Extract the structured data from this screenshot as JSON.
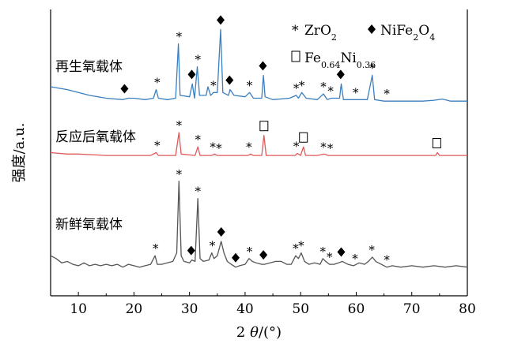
{
  "chart_data": {
    "type": "line",
    "xlabel_prefix": "2",
    "xlabel_theta": "θ",
    "xlabel_unit": "/(°)",
    "ylabel": "强度/a.u.",
    "xlim": [
      5,
      80
    ],
    "ylim": [
      0,
      100
    ],
    "xticks": [
      10,
      20,
      30,
      40,
      50,
      60,
      70,
      80
    ],
    "grid": false,
    "legend": {
      "placement": "top-right",
      "entries": [
        {
          "symbol": "*",
          "label": "ZrO",
          "sub": "2",
          "tail": ""
        },
        {
          "symbol": "◆",
          "label": "NiFe",
          "sub": "2",
          "tail": "O",
          "sub2": "4"
        },
        {
          "symbol": "□",
          "label": "Fe",
          "sub": "0.64",
          "tail": "Ni",
          "sub2": "0.36"
        }
      ]
    },
    "series": [
      {
        "name": "再生氧载体",
        "color": "#3b7fc0",
        "baseline": 67,
        "points": [
          [
            5,
            73
          ],
          [
            8,
            72
          ],
          [
            10,
            71
          ],
          [
            12,
            70
          ],
          [
            15,
            69
          ],
          [
            18,
            68.5
          ],
          [
            19,
            69
          ],
          [
            20,
            69
          ],
          [
            22,
            68.5
          ],
          [
            23.5,
            69
          ],
          [
            24,
            72
          ],
          [
            24.4,
            69
          ],
          [
            26,
            68.5
          ],
          [
            27.5,
            69
          ],
          [
            28,
            88
          ],
          [
            28.3,
            70
          ],
          [
            30,
            69.5
          ],
          [
            30.5,
            74
          ],
          [
            30.9,
            69
          ],
          [
            31.4,
            80
          ],
          [
            31.8,
            70
          ],
          [
            33,
            70
          ],
          [
            33.3,
            73
          ],
          [
            33.8,
            70
          ],
          [
            34.3,
            71
          ],
          [
            35,
            71
          ],
          [
            35.6,
            93
          ],
          [
            36,
            71
          ],
          [
            37,
            70
          ],
          [
            37.3,
            72
          ],
          [
            38,
            70
          ],
          [
            40,
            69.5
          ],
          [
            40.8,
            71
          ],
          [
            41.5,
            69
          ],
          [
            43,
            69
          ],
          [
            43.3,
            77
          ],
          [
            43.6,
            69.5
          ],
          [
            45,
            68.5
          ],
          [
            48,
            69
          ],
          [
            49.2,
            70
          ],
          [
            49.6,
            69
          ],
          [
            50.2,
            71
          ],
          [
            51,
            69
          ],
          [
            53,
            68.5
          ],
          [
            54.1,
            70.5
          ],
          [
            54.8,
            68.5
          ],
          [
            55.5,
            69
          ],
          [
            57,
            69
          ],
          [
            57.3,
            74
          ],
          [
            57.7,
            68.5
          ],
          [
            60,
            68.5
          ],
          [
            62,
            68.5
          ],
          [
            62.9,
            77
          ],
          [
            63.3,
            68.5
          ],
          [
            65,
            68
          ],
          [
            68,
            68
          ],
          [
            70,
            68
          ],
          [
            72,
            68
          ],
          [
            74,
            68.3
          ],
          [
            75.5,
            68.7
          ],
          [
            77,
            68
          ],
          [
            80,
            68
          ]
        ]
      },
      {
        "name": "反应后氧载体",
        "color": "#e05a5a",
        "baseline": 49,
        "points": [
          [
            5,
            50
          ],
          [
            8,
            49.5
          ],
          [
            10,
            49.5
          ],
          [
            15,
            49
          ],
          [
            20,
            49
          ],
          [
            23,
            49
          ],
          [
            24,
            50
          ],
          [
            24.4,
            49
          ],
          [
            27.5,
            49
          ],
          [
            28.1,
            57
          ],
          [
            28.5,
            49.5
          ],
          [
            31,
            49
          ],
          [
            31.5,
            52
          ],
          [
            31.9,
            49
          ],
          [
            34,
            49
          ],
          [
            34.5,
            49.5
          ],
          [
            35,
            49
          ],
          [
            40.5,
            49
          ],
          [
            41,
            49.5
          ],
          [
            41.5,
            49
          ],
          [
            43,
            49
          ],
          [
            43.4,
            56
          ],
          [
            43.8,
            49
          ],
          [
            49,
            49
          ],
          [
            49.4,
            49.7
          ],
          [
            50,
            49
          ],
          [
            50.5,
            52
          ],
          [
            50.9,
            49
          ],
          [
            53,
            49
          ],
          [
            54.2,
            49.5
          ],
          [
            55,
            49
          ],
          [
            60,
            49
          ],
          [
            65,
            49
          ],
          [
            70,
            49
          ],
          [
            74.3,
            49
          ],
          [
            74.6,
            50
          ],
          [
            75,
            49
          ],
          [
            80,
            49
          ]
        ]
      },
      {
        "name": "新鲜氧载体",
        "color": "#555555",
        "baseline": 10,
        "points": [
          [
            5,
            14
          ],
          [
            6,
            13
          ],
          [
            7,
            11.5
          ],
          [
            8,
            12
          ],
          [
            9,
            11
          ],
          [
            10,
            10.5
          ],
          [
            11,
            11.5
          ],
          [
            12,
            10.5
          ],
          [
            13,
            11
          ],
          [
            14,
            10.5
          ],
          [
            15,
            11
          ],
          [
            16,
            10.5
          ],
          [
            17,
            11
          ],
          [
            18,
            10
          ],
          [
            19,
            11
          ],
          [
            20,
            10.5
          ],
          [
            21,
            10
          ],
          [
            22,
            10.5
          ],
          [
            23,
            11
          ],
          [
            23.8,
            14
          ],
          [
            24.2,
            11
          ],
          [
            25,
            11
          ],
          [
            26,
            11.5
          ],
          [
            27,
            12
          ],
          [
            27.7,
            15
          ],
          [
            28.1,
            40
          ],
          [
            28.5,
            14
          ],
          [
            29,
            12
          ],
          [
            30,
            11.5
          ],
          [
            30.4,
            12.5
          ],
          [
            31,
            12
          ],
          [
            31.5,
            34
          ],
          [
            31.9,
            13
          ],
          [
            32.5,
            12
          ],
          [
            33.5,
            12.5
          ],
          [
            34,
            15
          ],
          [
            34.4,
            13
          ],
          [
            35,
            14
          ],
          [
            35.7,
            19
          ],
          [
            36.2,
            15
          ],
          [
            36.8,
            12
          ],
          [
            37.5,
            11
          ],
          [
            38.3,
            10
          ],
          [
            39,
            10.5
          ],
          [
            40,
            11
          ],
          [
            40.7,
            13
          ],
          [
            41.3,
            12
          ],
          [
            42,
            11.5
          ],
          [
            43,
            11
          ],
          [
            43.5,
            11
          ],
          [
            44.5,
            11.5
          ],
          [
            45.5,
            12
          ],
          [
            46.5,
            12
          ],
          [
            47.5,
            11
          ],
          [
            48.3,
            11
          ],
          [
            49.1,
            14
          ],
          [
            49.6,
            13
          ],
          [
            50.1,
            15
          ],
          [
            50.7,
            12
          ],
          [
            51.5,
            11
          ],
          [
            52.5,
            11.5
          ],
          [
            53.5,
            11
          ],
          [
            54,
            13
          ],
          [
            54.5,
            12
          ],
          [
            55.2,
            11
          ],
          [
            56,
            11
          ],
          [
            56.8,
            11.5
          ],
          [
            57.5,
            12
          ],
          [
            58.5,
            11
          ],
          [
            59.5,
            10.5
          ],
          [
            60.5,
            11.5
          ],
          [
            61.5,
            11
          ],
          [
            62.2,
            12
          ],
          [
            62.9,
            13.5
          ],
          [
            63.5,
            12
          ],
          [
            64.5,
            11
          ],
          [
            65.5,
            10
          ],
          [
            66.5,
            10.5
          ],
          [
            68,
            10
          ],
          [
            70,
            10.5
          ],
          [
            72,
            10
          ],
          [
            74,
            10.5
          ],
          [
            76,
            10
          ],
          [
            78,
            10.5
          ],
          [
            80,
            10
          ]
        ]
      }
    ],
    "markers": [
      {
        "series": 0,
        "x": 18.3,
        "symbol": "◆"
      },
      {
        "series": 0,
        "x": 24.2,
        "symbol": "*"
      },
      {
        "series": 0,
        "x": 28.1,
        "symbol": "*"
      },
      {
        "series": 0,
        "x": 30.4,
        "symbol": "◆"
      },
      {
        "series": 0,
        "x": 31.5,
        "symbol": "*"
      },
      {
        "series": 0,
        "x": 34.3,
        "symbol": "*"
      },
      {
        "series": 0,
        "x": 35.6,
        "symbol": "◆"
      },
      {
        "series": 0,
        "x": 37.2,
        "symbol": "◆"
      },
      {
        "series": 0,
        "x": 40.8,
        "symbol": "*"
      },
      {
        "series": 0,
        "x": 43.2,
        "symbol": "◆"
      },
      {
        "series": 0,
        "x": 49.2,
        "symbol": "*"
      },
      {
        "series": 0,
        "x": 50.2,
        "symbol": "*"
      },
      {
        "series": 0,
        "x": 54.1,
        "symbol": "*"
      },
      {
        "series": 0,
        "x": 55.4,
        "symbol": "*"
      },
      {
        "series": 0,
        "x": 57.2,
        "symbol": "◆"
      },
      {
        "series": 0,
        "x": 59.9,
        "symbol": "*"
      },
      {
        "series": 0,
        "x": 62.9,
        "symbol": "*"
      },
      {
        "series": 0,
        "x": 65.5,
        "symbol": "*"
      },
      {
        "series": 1,
        "x": 24.2,
        "symbol": "*"
      },
      {
        "series": 1,
        "x": 28.1,
        "symbol": "*"
      },
      {
        "series": 1,
        "x": 31.5,
        "symbol": "*"
      },
      {
        "series": 1,
        "x": 34.2,
        "symbol": "*"
      },
      {
        "series": 1,
        "x": 35.3,
        "symbol": "*"
      },
      {
        "series": 1,
        "x": 40.7,
        "symbol": "*"
      },
      {
        "series": 1,
        "x": 43.4,
        "symbol": "□"
      },
      {
        "series": 1,
        "x": 49.2,
        "symbol": "*"
      },
      {
        "series": 1,
        "x": 50.5,
        "symbol": "□"
      },
      {
        "series": 1,
        "x": 54.1,
        "symbol": "*"
      },
      {
        "series": 1,
        "x": 55.3,
        "symbol": "*"
      },
      {
        "series": 1,
        "x": 74.5,
        "symbol": "□"
      },
      {
        "series": 2,
        "x": 23.9,
        "symbol": "*"
      },
      {
        "series": 2,
        "x": 28.1,
        "symbol": "*"
      },
      {
        "series": 2,
        "x": 30.3,
        "symbol": "◆"
      },
      {
        "series": 2,
        "x": 31.5,
        "symbol": "*"
      },
      {
        "series": 2,
        "x": 34.1,
        "symbol": "*"
      },
      {
        "series": 2,
        "x": 35.7,
        "symbol": "◆"
      },
      {
        "series": 2,
        "x": 38.3,
        "symbol": "◆"
      },
      {
        "series": 2,
        "x": 40.8,
        "symbol": "*"
      },
      {
        "series": 2,
        "x": 43.3,
        "symbol": "◆"
      },
      {
        "series": 2,
        "x": 49.1,
        "symbol": "*"
      },
      {
        "series": 2,
        "x": 50.1,
        "symbol": "*"
      },
      {
        "series": 2,
        "x": 54.0,
        "symbol": "*"
      },
      {
        "series": 2,
        "x": 55.2,
        "symbol": "*"
      },
      {
        "series": 2,
        "x": 57.3,
        "symbol": "◆"
      },
      {
        "series": 2,
        "x": 59.8,
        "symbol": "*"
      },
      {
        "series": 2,
        "x": 62.8,
        "symbol": "*"
      },
      {
        "series": 2,
        "x": 65.5,
        "symbol": "*"
      }
    ]
  }
}
